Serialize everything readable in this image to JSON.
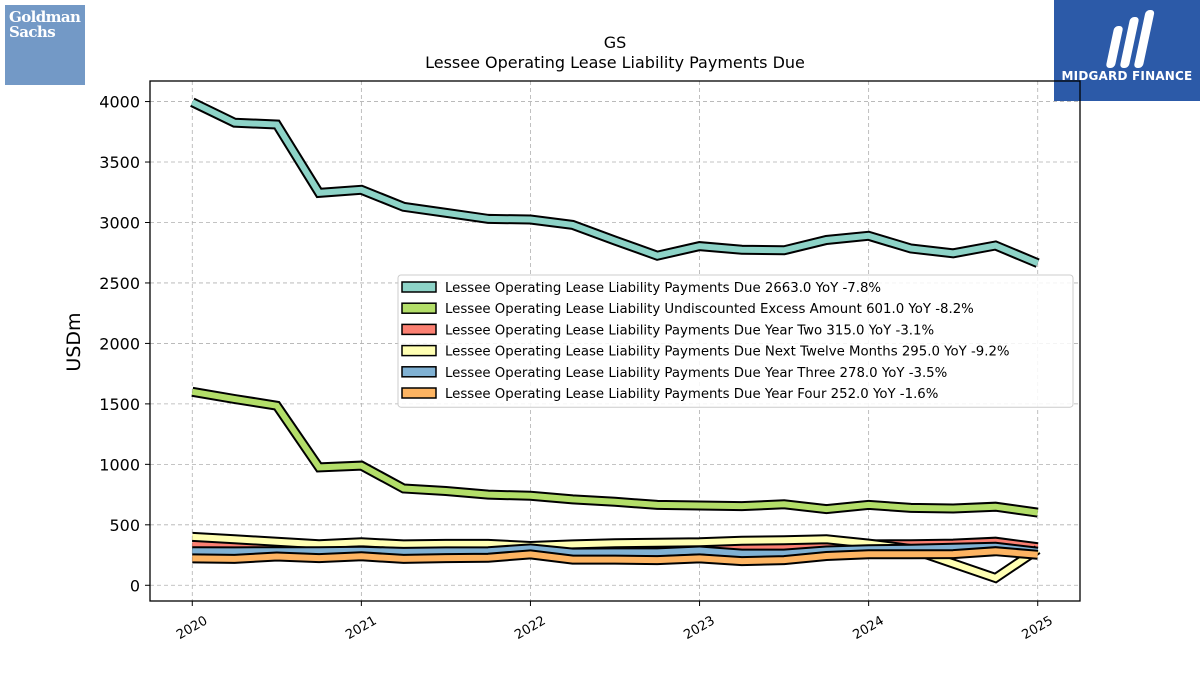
{
  "logos": {
    "left_line1": "Goldman",
    "left_line2": "Sachs",
    "right_text": "MIDGARD FINANCE"
  },
  "chart_data": {
    "type": "area",
    "title": "GS",
    "subtitle": "Lessee Operating Lease Liability Payments Due",
    "xlabel": "",
    "ylabel": "USDm",
    "xlim": [
      2019.75,
      2025.25
    ],
    "ylim": [
      -130,
      4170
    ],
    "x_ticks": [
      2020,
      2021,
      2022,
      2023,
      2024,
      2025
    ],
    "x_tick_labels": [
      "2020",
      "2021",
      "2022",
      "2023",
      "2024",
      "2025"
    ],
    "y_ticks": [
      0,
      500,
      1000,
      1500,
      2000,
      2500,
      3000,
      3500,
      4000
    ],
    "y_tick_labels": [
      "0",
      "500",
      "1000",
      "1500",
      "2000",
      "2500",
      "3000",
      "3500",
      "4000"
    ],
    "grid": true,
    "legend_position": "center-right",
    "x": [
      2020.0,
      2020.25,
      2020.5,
      2020.75,
      2021.0,
      2021.25,
      2021.5,
      2021.75,
      2022.0,
      2022.25,
      2022.5,
      2022.75,
      2023.0,
      2023.25,
      2023.5,
      2023.75,
      2024.0,
      2024.25,
      2024.5,
      2024.75,
      2025.0
    ],
    "series": [
      {
        "name": "Lessee Operating Lease Liability Payments Due  2663.0 YoY -7.8%",
        "color": "#8dd3c7",
        "values": [
          3995,
          3825,
          3810,
          3245,
          3270,
          3130,
          3080,
          3030,
          3025,
          2980,
          2850,
          2725,
          2805,
          2775,
          2770,
          2855,
          2890,
          2785,
          2745,
          2810,
          2663
        ]
      },
      {
        "name": "Lessee Operating Lease Liability Undiscounted Excess Amount  601.0 YoY -8.2%",
        "color": "#b3de69",
        "values": [
          1600,
          1540,
          1485,
          975,
          990,
          800,
          780,
          750,
          740,
          710,
          690,
          665,
          660,
          655,
          670,
          630,
          665,
          640,
          635,
          650,
          601
        ]
      },
      {
        "name": "Lessee Operating Lease Liability Payments Due Year Two  315.0 YoY -3.1%",
        "color": "#fb8072",
        "values": [
          335,
          322,
          305,
          298,
          308,
          292,
          297,
          302,
          318,
          312,
          312,
          322,
          325,
          308,
          318,
          330,
          338,
          340,
          345,
          360,
          315
        ]
      },
      {
        "name": "Lessee Operating Lease Liability Payments Due Next Twelve Months  295.0 YoY -9.2%",
        "color": "#ffffb3",
        "values": [
          400,
          380,
          360,
          340,
          355,
          338,
          342,
          342,
          325,
          338,
          348,
          352,
          355,
          368,
          372,
          380,
          345,
          300,
          180,
          60,
          295
        ]
      },
      {
        "name": "Lessee Operating Lease Liability Payments Due Year Three  278.0 YoY -3.5%",
        "color": "#80b1d3",
        "values": [
          282,
          280,
          282,
          282,
          285,
          276,
          280,
          282,
          305,
          270,
          272,
          272,
          288,
          262,
          262,
          288,
          298,
          302,
          310,
          318,
          278
        ]
      },
      {
        "name": "Lessee Operating Lease Liability Payments Due Year Four  252.0 YoY -1.6%",
        "color": "#fdb462",
        "values": [
          222,
          218,
          238,
          225,
          240,
          218,
          225,
          228,
          255,
          212,
          212,
          208,
          222,
          200,
          208,
          242,
          256,
          256,
          258,
          282,
          252
        ]
      }
    ]
  }
}
